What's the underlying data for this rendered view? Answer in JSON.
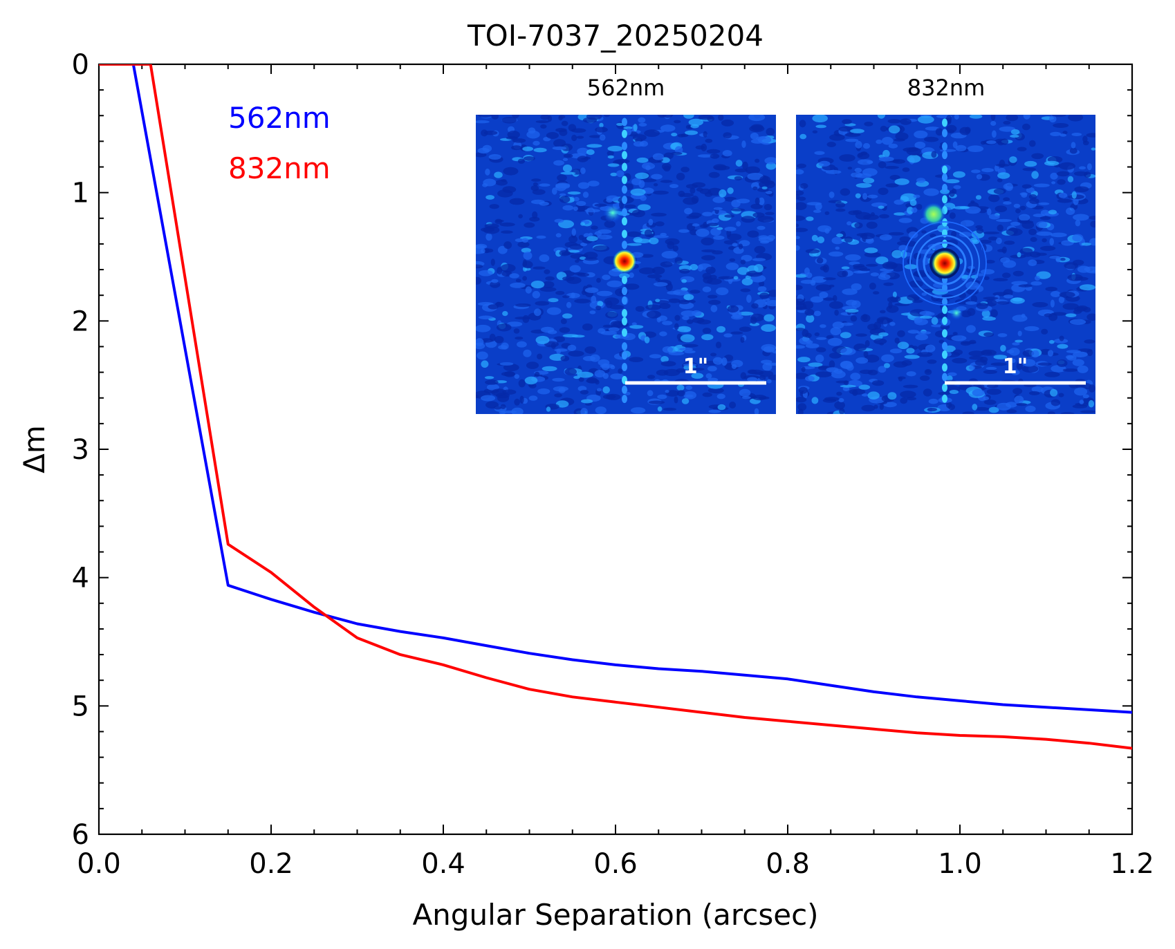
{
  "chart_data": {
    "type": "line",
    "title": "TOI-7037_20250204",
    "xlabel": "Angular Separation (arcsec)",
    "ylabel": "Δm",
    "xlim": [
      0.0,
      1.2
    ],
    "ylim": [
      0,
      6
    ],
    "y_inverted": true,
    "x_ticks": [
      "0.0",
      "0.2",
      "0.4",
      "0.6",
      "0.8",
      "1.0",
      "1.2"
    ],
    "y_ticks": [
      "0",
      "1",
      "2",
      "3",
      "4",
      "5",
      "6"
    ],
    "x_tick_values": [
      0.0,
      0.2,
      0.4,
      0.6,
      0.8,
      1.0,
      1.2
    ],
    "y_tick_values": [
      0,
      1,
      2,
      3,
      4,
      5,
      6
    ],
    "grid": false,
    "legend_placement": "top-left (text labels)",
    "series": [
      {
        "name": "562nm",
        "color": "#0000ff",
        "points": [
          [
            0.0,
            0.0
          ],
          [
            0.04,
            0.0
          ],
          [
            0.15,
            4.06
          ],
          [
            0.2,
            4.17
          ],
          [
            0.25,
            4.27
          ],
          [
            0.3,
            4.36
          ],
          [
            0.35,
            4.42
          ],
          [
            0.4,
            4.47
          ],
          [
            0.45,
            4.53
          ],
          [
            0.5,
            4.59
          ],
          [
            0.55,
            4.64
          ],
          [
            0.6,
            4.68
          ],
          [
            0.65,
            4.71
          ],
          [
            0.7,
            4.73
          ],
          [
            0.75,
            4.76
          ],
          [
            0.8,
            4.79
          ],
          [
            0.85,
            4.84
          ],
          [
            0.9,
            4.89
          ],
          [
            0.95,
            4.93
          ],
          [
            1.0,
            4.96
          ],
          [
            1.05,
            4.99
          ],
          [
            1.1,
            5.01
          ],
          [
            1.15,
            5.03
          ],
          [
            1.2,
            5.05
          ]
        ]
      },
      {
        "name": "832nm",
        "color": "#ff0000",
        "points": [
          [
            0.0,
            0.0
          ],
          [
            0.06,
            0.0
          ],
          [
            0.15,
            3.74
          ],
          [
            0.2,
            3.96
          ],
          [
            0.25,
            4.23
          ],
          [
            0.3,
            4.47
          ],
          [
            0.35,
            4.6
          ],
          [
            0.4,
            4.68
          ],
          [
            0.45,
            4.78
          ],
          [
            0.5,
            4.87
          ],
          [
            0.55,
            4.93
          ],
          [
            0.6,
            4.97
          ],
          [
            0.65,
            5.01
          ],
          [
            0.7,
            5.05
          ],
          [
            0.75,
            5.09
          ],
          [
            0.8,
            5.12
          ],
          [
            0.85,
            5.15
          ],
          [
            0.9,
            5.18
          ],
          [
            0.95,
            5.21
          ],
          [
            1.0,
            5.23
          ],
          [
            1.05,
            5.24
          ],
          [
            1.1,
            5.26
          ],
          [
            1.15,
            5.29
          ],
          [
            1.2,
            5.33
          ]
        ]
      }
    ],
    "insets": [
      {
        "label": "562nm",
        "scale_bar": "1\"",
        "colormap": "jet"
      },
      {
        "label": "832nm",
        "scale_bar": "1\"",
        "colormap": "jet"
      }
    ]
  },
  "legend": {
    "items": [
      {
        "label": "562nm",
        "color": "#0000ff"
      },
      {
        "label": "832nm",
        "color": "#ff0000"
      }
    ]
  }
}
